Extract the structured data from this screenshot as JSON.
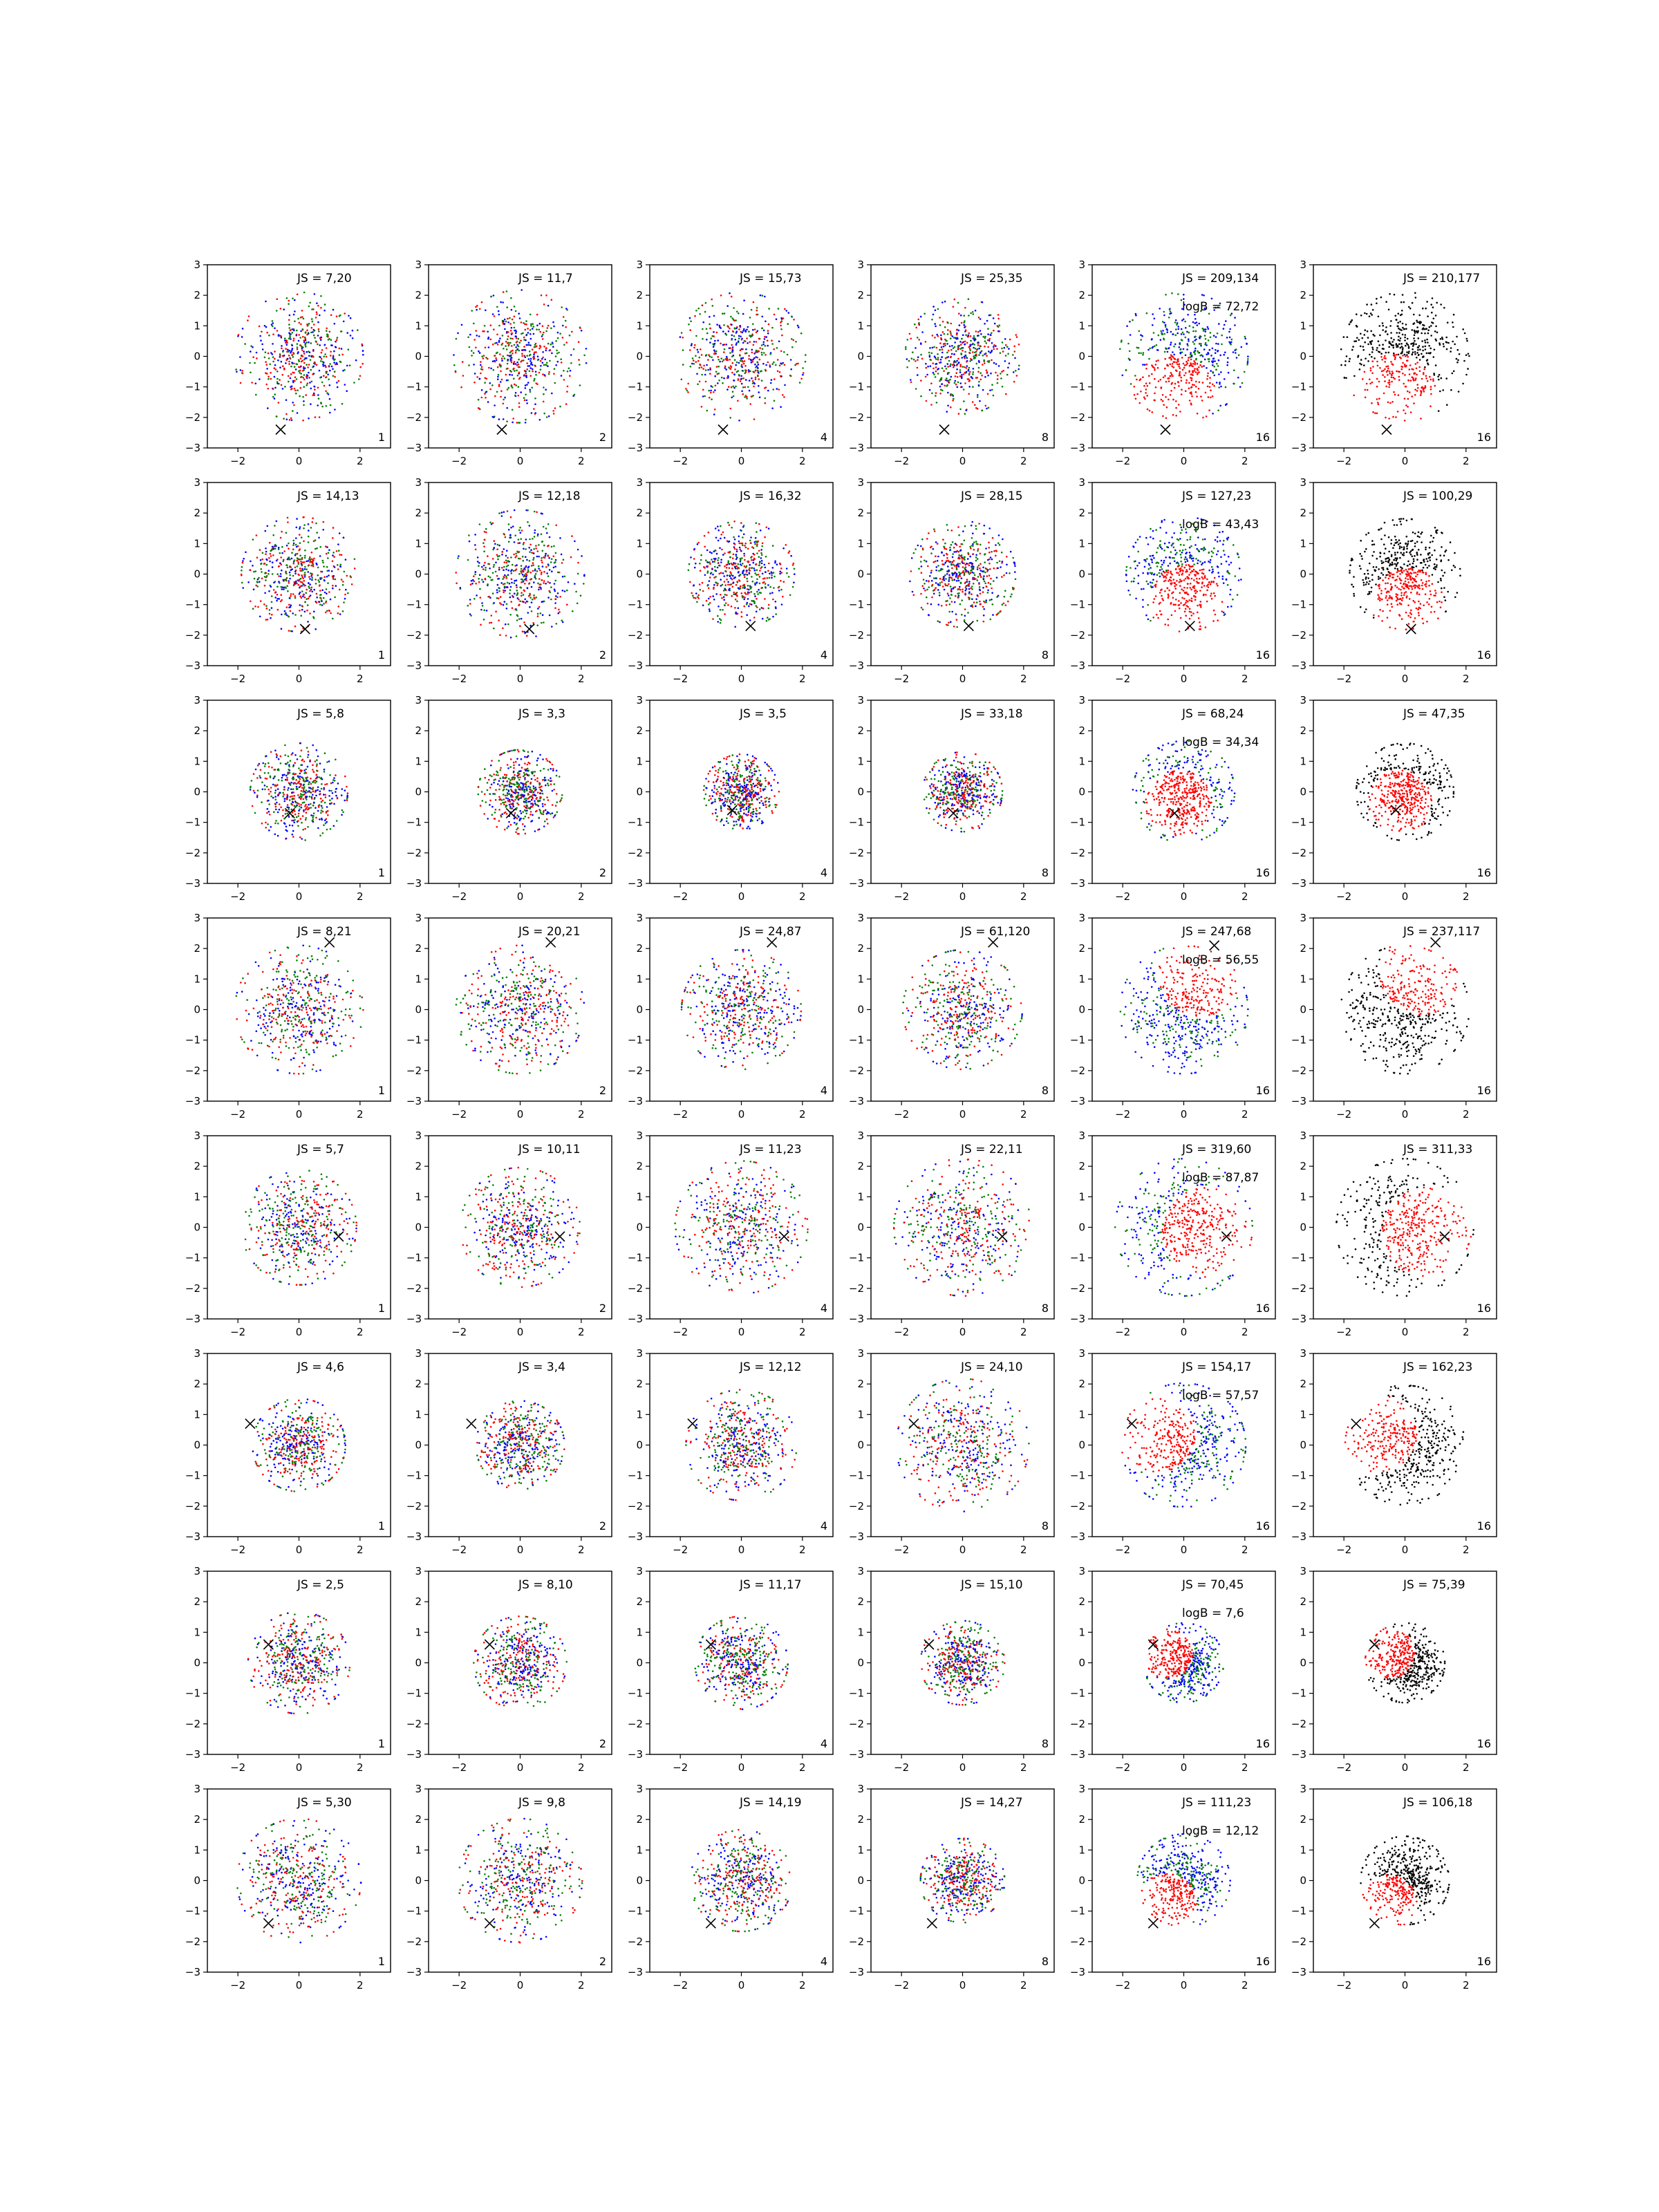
{
  "figure": {
    "rows": 8,
    "cols": 6,
    "xlim": [
      -3,
      3
    ],
    "ylim": [
      -3,
      3
    ],
    "xticks": [
      -2,
      0,
      2
    ],
    "yticks": [
      -3,
      -2,
      -1,
      0,
      1,
      2,
      3
    ],
    "grid": false,
    "legend": "none",
    "colors": {
      "red": "#ff0000",
      "green": "#008000",
      "blue": "#0000ff",
      "black": "#000000"
    }
  },
  "chart_data": {
    "type": "scatter",
    "title": "",
    "xlabel": "",
    "ylabel": "",
    "panels": [
      {
        "row": 1,
        "col": 1,
        "js": "JS = 7,20",
        "logb": null,
        "res": "1",
        "marker": [
          -0.6,
          -2.4
        ],
        "spread": 1.45,
        "mode": "mix"
      },
      {
        "row": 1,
        "col": 2,
        "js": "JS = 11,7",
        "logb": null,
        "res": "2",
        "marker": [
          -0.6,
          -2.4
        ],
        "spread": 1.5,
        "mode": "mix"
      },
      {
        "row": 1,
        "col": 3,
        "js": "JS = 15,73",
        "logb": null,
        "res": "4",
        "marker": [
          -0.6,
          -2.4
        ],
        "spread": 1.45,
        "mode": "mix"
      },
      {
        "row": 1,
        "col": 4,
        "js": "JS = 25,35",
        "logb": null,
        "res": "8",
        "marker": [
          -0.6,
          -2.4
        ],
        "spread": 1.3,
        "mode": "mix"
      },
      {
        "row": 1,
        "col": 5,
        "js": "JS = 209,134",
        "logb": "logB = 72,72",
        "res": "16",
        "marker": [
          -0.6,
          -2.4
        ],
        "spread": 1.45,
        "mode": "sep"
      },
      {
        "row": 1,
        "col": 6,
        "js": "JS = 210,177",
        "logb": null,
        "res": "16",
        "marker": [
          -0.6,
          -2.4
        ],
        "spread": 1.45,
        "mode": "bw"
      },
      {
        "row": 2,
        "col": 1,
        "js": "JS = 14,13",
        "logb": null,
        "res": "1",
        "marker": [
          0.2,
          -1.8
        ],
        "spread": 1.3,
        "mode": "mix"
      },
      {
        "row": 2,
        "col": 2,
        "js": "JS = 12,18",
        "logb": null,
        "res": "2",
        "marker": [
          0.3,
          -1.8
        ],
        "spread": 1.45,
        "mode": "mix"
      },
      {
        "row": 2,
        "col": 3,
        "js": "JS = 16,32",
        "logb": null,
        "res": "4",
        "marker": [
          0.3,
          -1.7
        ],
        "spread": 1.2,
        "mode": "mix"
      },
      {
        "row": 2,
        "col": 4,
        "js": "JS = 28,15",
        "logb": null,
        "res": "8",
        "marker": [
          0.2,
          -1.7
        ],
        "spread": 1.2,
        "mode": "mix"
      },
      {
        "row": 2,
        "col": 5,
        "js": "JS = 127,23",
        "logb": "logB = 43,43",
        "res": "16",
        "marker": [
          0.2,
          -1.7
        ],
        "spread": 1.3,
        "mode": "sep"
      },
      {
        "row": 2,
        "col": 6,
        "js": "JS = 100,29",
        "logb": null,
        "res": "16",
        "marker": [
          0.2,
          -1.8
        ],
        "spread": 1.25,
        "mode": "bw"
      },
      {
        "row": 3,
        "col": 1,
        "js": "JS = 5,8",
        "logb": null,
        "res": "1",
        "marker": [
          -0.3,
          -0.7
        ],
        "spread": 1.1,
        "mode": "mix"
      },
      {
        "row": 3,
        "col": 2,
        "js": "JS = 3,3",
        "logb": null,
        "res": "2",
        "marker": [
          -0.3,
          -0.7
        ],
        "spread": 0.95,
        "mode": "mix"
      },
      {
        "row": 3,
        "col": 3,
        "js": "JS = 3,5",
        "logb": null,
        "res": "4",
        "marker": [
          -0.3,
          -0.6
        ],
        "spread": 0.85,
        "mode": "mix"
      },
      {
        "row": 3,
        "col": 4,
        "js": "JS = 33,18",
        "logb": null,
        "res": "8",
        "marker": [
          -0.3,
          -0.7
        ],
        "spread": 0.9,
        "mode": "mix"
      },
      {
        "row": 3,
        "col": 5,
        "js": "JS = 68,24",
        "logb": "logB = 34,34",
        "res": "16",
        "marker": [
          -0.3,
          -0.7
        ],
        "spread": 1.15,
        "mode": "sep"
      },
      {
        "row": 3,
        "col": 6,
        "js": "JS = 47,35",
        "logb": null,
        "res": "16",
        "marker": [
          -0.3,
          -0.6
        ],
        "spread": 1.1,
        "mode": "bw"
      },
      {
        "row": 4,
        "col": 1,
        "js": "JS = 8,21",
        "logb": null,
        "res": "1",
        "marker": [
          1.0,
          2.2
        ],
        "spread": 1.45,
        "mode": "mix"
      },
      {
        "row": 4,
        "col": 2,
        "js": "JS = 20,21",
        "logb": null,
        "res": "2",
        "marker": [
          1.0,
          2.2
        ],
        "spread": 1.45,
        "mode": "mix"
      },
      {
        "row": 4,
        "col": 3,
        "js": "JS = 24,87",
        "logb": null,
        "res": "4",
        "marker": [
          1.0,
          2.2
        ],
        "spread": 1.35,
        "mode": "mix"
      },
      {
        "row": 4,
        "col": 4,
        "js": "JS = 61,120",
        "logb": null,
        "res": "8",
        "marker": [
          1.0,
          2.2
        ],
        "spread": 1.35,
        "mode": "mix"
      },
      {
        "row": 4,
        "col": 5,
        "js": "JS = 247,68",
        "logb": "logB = 56,55",
        "res": "16",
        "marker": [
          1.0,
          2.1
        ],
        "spread": 1.45,
        "mode": "sep"
      },
      {
        "row": 4,
        "col": 6,
        "js": "JS = 237,117",
        "logb": null,
        "res": "16",
        "marker": [
          1.0,
          2.2
        ],
        "spread": 1.45,
        "mode": "bw"
      },
      {
        "row": 5,
        "col": 1,
        "js": "JS = 5,7",
        "logb": null,
        "res": "1",
        "marker": [
          1.3,
          -0.3
        ],
        "spread": 1.3,
        "mode": "mix"
      },
      {
        "row": 5,
        "col": 2,
        "js": "JS = 10,11",
        "logb": null,
        "res": "2",
        "marker": [
          1.3,
          -0.3
        ],
        "spread": 1.35,
        "mode": "mix"
      },
      {
        "row": 5,
        "col": 3,
        "js": "JS = 11,23",
        "logb": null,
        "res": "4",
        "marker": [
          1.4,
          -0.3
        ],
        "spread": 1.5,
        "mode": "mix"
      },
      {
        "row": 5,
        "col": 4,
        "js": "JS = 22,11",
        "logb": null,
        "res": "8",
        "marker": [
          1.3,
          -0.3
        ],
        "spread": 1.55,
        "mode": "mix"
      },
      {
        "row": 5,
        "col": 5,
        "js": "JS = 319,60",
        "logb": "logB = 87,87",
        "res": "16",
        "marker": [
          1.4,
          -0.3
        ],
        "spread": 1.55,
        "mode": "sep"
      },
      {
        "row": 5,
        "col": 6,
        "js": "JS = 311,33",
        "logb": null,
        "res": "16",
        "marker": [
          1.3,
          -0.3
        ],
        "spread": 1.55,
        "mode": "bw"
      },
      {
        "row": 6,
        "col": 1,
        "js": "JS = 4,6",
        "logb": null,
        "res": "1",
        "marker": [
          -1.6,
          0.7
        ],
        "spread": 1.05,
        "mode": "mix"
      },
      {
        "row": 6,
        "col": 2,
        "js": "JS = 3,4",
        "logb": null,
        "res": "2",
        "marker": [
          -1.6,
          0.7
        ],
        "spread": 1.0,
        "mode": "mix"
      },
      {
        "row": 6,
        "col": 3,
        "js": "JS = 12,12",
        "logb": null,
        "res": "4",
        "marker": [
          -1.6,
          0.7
        ],
        "spread": 1.25,
        "mode": "mix"
      },
      {
        "row": 6,
        "col": 4,
        "js": "JS = 24,10",
        "logb": null,
        "res": "8",
        "marker": [
          -1.6,
          0.7
        ],
        "spread": 1.5,
        "mode": "mix"
      },
      {
        "row": 6,
        "col": 5,
        "js": "JS = 154,17",
        "logb": "logB = 57,57",
        "res": "16",
        "marker": [
          -1.7,
          0.7
        ],
        "spread": 1.4,
        "mode": "sep"
      },
      {
        "row": 6,
        "col": 6,
        "js": "JS = 162,23",
        "logb": null,
        "res": "16",
        "marker": [
          -1.6,
          0.7
        ],
        "spread": 1.35,
        "mode": "bw"
      },
      {
        "row": 7,
        "col": 1,
        "js": "JS = 2,5",
        "logb": null,
        "res": "1",
        "marker": [
          -1.0,
          0.6
        ],
        "spread": 1.15,
        "mode": "mix"
      },
      {
        "row": 7,
        "col": 2,
        "js": "JS = 8,10",
        "logb": null,
        "res": "2",
        "marker": [
          -1.0,
          0.6
        ],
        "spread": 1.05,
        "mode": "mix"
      },
      {
        "row": 7,
        "col": 3,
        "js": "JS = 11,17",
        "logb": null,
        "res": "4",
        "marker": [
          -1.0,
          0.6
        ],
        "spread": 1.05,
        "mode": "mix"
      },
      {
        "row": 7,
        "col": 4,
        "js": "JS = 15,10",
        "logb": null,
        "res": "8",
        "marker": [
          -1.1,
          0.6
        ],
        "spread": 0.95,
        "mode": "mix"
      },
      {
        "row": 7,
        "col": 5,
        "js": "JS = 70,45",
        "logb": "logB = 7,6",
        "res": "16",
        "marker": [
          -1.0,
          0.6
        ],
        "spread": 0.9,
        "mode": "sep"
      },
      {
        "row": 7,
        "col": 6,
        "js": "JS = 75,39",
        "logb": null,
        "res": "16",
        "marker": [
          -1.0,
          0.6
        ],
        "spread": 0.9,
        "mode": "bw"
      },
      {
        "row": 8,
        "col": 1,
        "js": "JS = 5,30",
        "logb": null,
        "res": "1",
        "marker": [
          -1.0,
          -1.4
        ],
        "spread": 1.4,
        "mode": "mix"
      },
      {
        "row": 8,
        "col": 2,
        "js": "JS = 9,8",
        "logb": null,
        "res": "2",
        "marker": [
          -1.0,
          -1.4
        ],
        "spread": 1.4,
        "mode": "mix"
      },
      {
        "row": 8,
        "col": 3,
        "js": "JS = 14,19",
        "logb": null,
        "res": "4",
        "marker": [
          -1.0,
          -1.4
        ],
        "spread": 1.15,
        "mode": "mix"
      },
      {
        "row": 8,
        "col": 4,
        "js": "JS = 14,27",
        "logb": null,
        "res": "8",
        "marker": [
          -1.0,
          -1.4
        ],
        "spread": 0.95,
        "mode": "mix"
      },
      {
        "row": 8,
        "col": 5,
        "js": "JS = 111,23",
        "logb": "logB = 12,12",
        "res": "16",
        "marker": [
          -1.0,
          -1.4
        ],
        "spread": 1.05,
        "mode": "sep"
      },
      {
        "row": 8,
        "col": 6,
        "js": "JS = 106,18",
        "logb": null,
        "res": "16",
        "marker": [
          -1.0,
          -1.4
        ],
        "spread": 1.0,
        "mode": "bw"
      }
    ]
  }
}
